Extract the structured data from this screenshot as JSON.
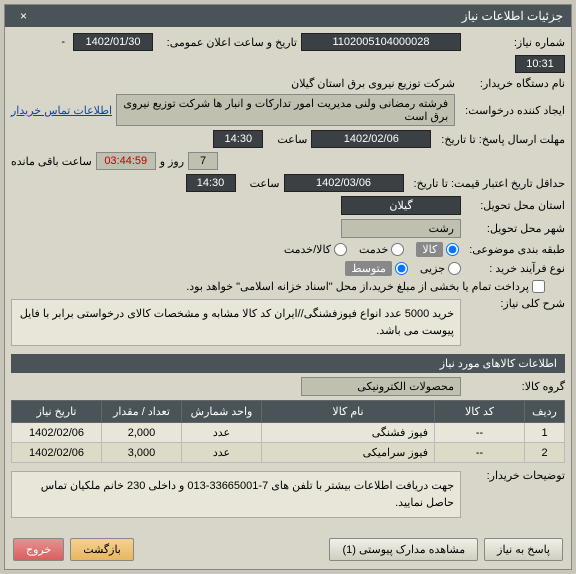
{
  "titlebar": {
    "title": "جزئیات اطلاعات نیاز",
    "close": "×"
  },
  "fields": {
    "need_no_label": "شماره نیاز:",
    "need_no": "1102005104000028",
    "announce_label": "تاریخ و ساعت اعلان عمومی:",
    "announce_date": "1402/01/30",
    "announce_sep": "-",
    "announce_time": "10:31",
    "buyer_label": "نام دستگاه خریدار:",
    "buyer": "شرکت توزیع نیروی برق استان گیلان",
    "creator_label": "ایجاد کننده درخواست:",
    "creator": "فرشته رمضانی ولنی مدیریت امور تدارکات و انبار ها شرکت توزیع نیروی برق است",
    "contact_link": "اطلاعات تماس خریدار",
    "deadline_label": "مهلت ارسال پاسخ: تا تاریخ:",
    "deadline_date": "1402/02/06",
    "time_label": "ساعت",
    "deadline_time": "14:30",
    "days_left": "7",
    "days_and": "روز و",
    "countdown": "03:44:59",
    "remain": "ساعت باقی مانده",
    "validity_label": "حداقل تاریخ اعتبار قیمت: تا تاریخ:",
    "validity_date": "1402/03/06",
    "validity_time": "14:30",
    "province_label": "استان محل تحویل:",
    "province": "گیلان",
    "city_label": "شهر محل تحویل:",
    "city": "رشت",
    "category_label": "طبقه بندی موضوعی:",
    "cat_kala": "کالا",
    "cat_service": "خدمت",
    "cat_both": "کالا/خدمت",
    "process_label": "نوع فرآیند خرید :",
    "proc_low": "جزیی",
    "proc_mid": "متوسط",
    "proc_note": "پرداخت تمام یا بخشی از مبلغ خرید،از محل \"اسناد خزانه اسلامی\" خواهد بود.",
    "summary_label": "شرح کلی نیاز:",
    "summary": "خرید 5000 عدد انواع فیوزفشنگی//ایران کد کالا مشابه و مشخصات کالای درخواستی برابر با فایل پیوست می باشد.",
    "items_header": "اطلاعات کالاهای مورد نیاز",
    "goods_group_label": "گروه کالا:",
    "goods_group": "محصولات الکترونیکی",
    "buyer_notes_label": "توضیحات خریدار:",
    "buyer_notes": "جهت دریافت اطلاعات بیشتر با تلفن های 7-33665001-013 و داخلی 230 خانم ملکیان تماس حاصل نمایید."
  },
  "table": {
    "headers": {
      "row": "ردیف",
      "code": "کد کالا",
      "name": "نام کالا",
      "unit": "واحد شمارش",
      "qty": "تعداد / مقدار",
      "date": "تاریخ نیاز"
    },
    "rows": [
      {
        "row": "1",
        "code": "--",
        "name": "فیوز فشنگی",
        "unit": "عدد",
        "qty": "2,000",
        "date": "1402/02/06"
      },
      {
        "row": "2",
        "code": "--",
        "name": "فیوز سرامیکی",
        "unit": "عدد",
        "qty": "3,000",
        "date": "1402/02/06"
      }
    ]
  },
  "buttons": {
    "reply": "پاسخ به نیاز",
    "attachments": "مشاهده مدارک پیوستی (1)",
    "back": "بازگشت",
    "exit": "خروج"
  },
  "colors": {
    "header": "#4a5458",
    "bg": "#d8d6c8",
    "field_dark": "#3a4044"
  }
}
